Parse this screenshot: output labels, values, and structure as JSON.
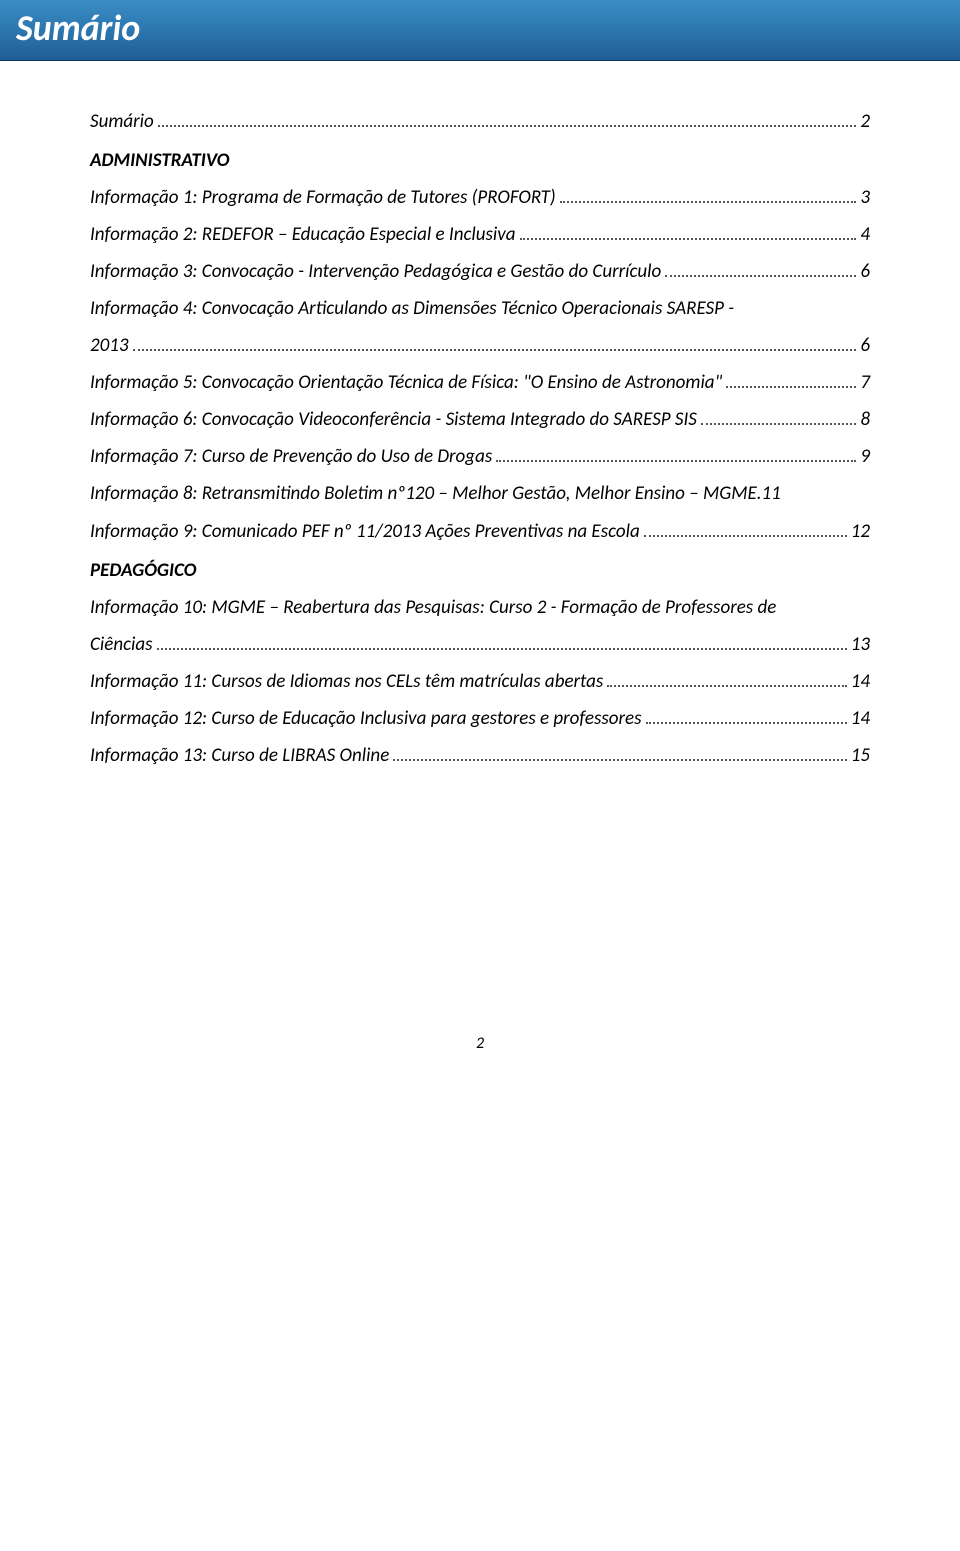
{
  "colors": {
    "banner_gradient_top": "#3a8cc4",
    "banner_gradient_mid": "#2d77b0",
    "banner_gradient_bottom": "#1f5e94",
    "banner_text": "#ffffff",
    "body_text": "#000000",
    "dot_leader": "#555555",
    "background": "#ffffff"
  },
  "typography": {
    "title_fontsize_pt": 26,
    "body_fontsize_pt": 14,
    "font_family": "Calibri",
    "italic": true
  },
  "banner": {
    "title": "Sumário"
  },
  "toc": {
    "first": {
      "label": "Sumário",
      "page": "2"
    },
    "sections": [
      {
        "heading": "ADMINISTRATIVO",
        "items": [
          {
            "label": "Informação 1: Programa de Formação de Tutores (PROFORT)",
            "page": "3"
          },
          {
            "label": "Informação 2: REDEFOR – Educação Especial e Inclusiva",
            "page": "4"
          },
          {
            "label": "Informação 3: Convocação - Intervenção Pedagógica e Gestão do Currículo",
            "page": "6"
          },
          {
            "label": "Informação 4: Convocação Articulando as Dimensões Técnico Operacionais SARESP - 2013",
            "page": "6"
          },
          {
            "label": "Informação 5: Convocação Orientação Técnica de Física: \"O Ensino de Astronomia\"",
            "page": "7"
          },
          {
            "label": "Informação 6: Convocação Videoconferência -  Sistema Integrado do SARESP SIS",
            "page": "8"
          },
          {
            "label": "Informação 7: Curso de Prevenção do Uso de Drogas",
            "page": "9"
          },
          {
            "label": "Informação 8: Retransmitindo Boletim nº120 – Melhor Gestão, Melhor Ensino – MGME.",
            "page": "11"
          },
          {
            "label": "Informação 9: Comunicado PEF nº 11/2013 Ações Preventivas na Escola",
            "page": "12"
          }
        ]
      },
      {
        "heading": "PEDAGÓGICO",
        "items": [
          {
            "label": "Informação 10: MGME – Reabertura das Pesquisas: Curso 2 - Formação de Professores de Ciências",
            "page": "13"
          },
          {
            "label": "Informação 11: Cursos de Idiomas nos CELs têm matrículas abertas",
            "page": "14"
          },
          {
            "label": "Informação 12: Curso de Educação Inclusiva para gestores e professores",
            "page": "14"
          },
          {
            "label": "Informação 13: Curso de LIBRAS Online",
            "page": "15"
          }
        ]
      }
    ]
  },
  "split_entries": {
    "s0i3": {
      "line1": "Informação 4: Convocação Articulando as Dimensões Técnico Operacionais SARESP -",
      "line2": "2013"
    },
    "s1i0": {
      "line1": "Informação 10: MGME – Reabertura das Pesquisas: Curso 2 - Formação de Professores de",
      "line2": "Ciências"
    }
  },
  "footer": {
    "page_number": "2"
  }
}
